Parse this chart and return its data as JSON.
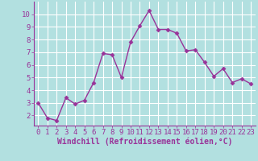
{
  "x": [
    0,
    1,
    2,
    3,
    4,
    5,
    6,
    7,
    8,
    9,
    10,
    11,
    12,
    13,
    14,
    15,
    16,
    17,
    18,
    19,
    20,
    21,
    22,
    23
  ],
  "y": [
    3.0,
    1.8,
    1.6,
    3.4,
    2.9,
    3.2,
    4.6,
    6.9,
    6.8,
    5.0,
    7.8,
    9.1,
    10.3,
    8.8,
    8.8,
    8.5,
    7.1,
    7.2,
    6.2,
    5.1,
    5.7,
    4.6,
    4.9,
    4.5
  ],
  "xlabel": "Windchill (Refroidissement éolien,°C)",
  "xlim": [
    -0.5,
    23.5
  ],
  "ylim": [
    1.2,
    11.0
  ],
  "yticks": [
    2,
    3,
    4,
    5,
    6,
    7,
    8,
    9,
    10
  ],
  "xticks": [
    0,
    1,
    2,
    3,
    4,
    5,
    6,
    7,
    8,
    9,
    10,
    11,
    12,
    13,
    14,
    15,
    16,
    17,
    18,
    19,
    20,
    21,
    22,
    23
  ],
  "line_color": "#993399",
  "marker": "D",
  "marker_size": 2.5,
  "bg_color": "#b2e0e0",
  "grid_color": "#ffffff",
  "axis_label_color": "#993399",
  "tick_label_color": "#993399",
  "font_family": "monospace",
  "tick_fontsize": 6.5,
  "xlabel_fontsize": 7.0,
  "linewidth": 1.0
}
